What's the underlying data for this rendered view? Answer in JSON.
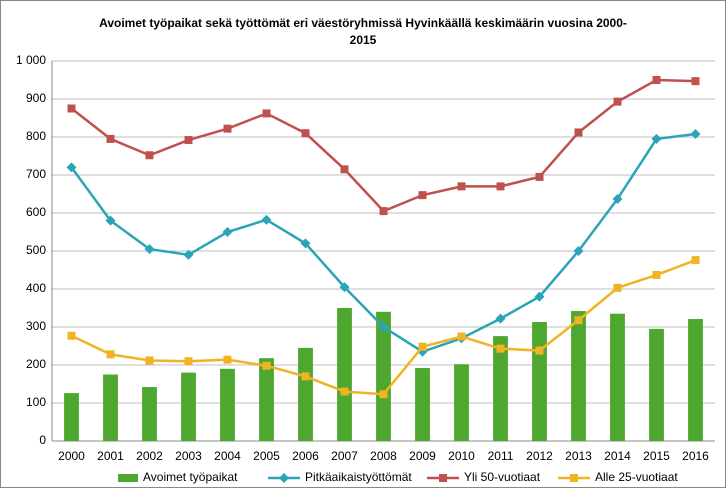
{
  "chart_data": {
    "type": "bar",
    "title": "Avoimet työpaikat sekä työttömät eri väestöryhmissä Hyvinkäällä keskimäärin vuosina 2000-2015",
    "categories": [
      "2000",
      "2001",
      "2002",
      "2003",
      "2004",
      "2005",
      "2006",
      "2007",
      "2008",
      "2009",
      "2010",
      "2011",
      "2012",
      "2013",
      "2014",
      "2015",
      "2016"
    ],
    "series": [
      {
        "name": "Avoimet työpaikat",
        "type": "bar",
        "color": "#4ea72e",
        "values": [
          126,
          175,
          142,
          180,
          190,
          218,
          245,
          350,
          340,
          192,
          202,
          276,
          313,
          342,
          335,
          295,
          321
        ]
      },
      {
        "name": "Pitkäaikaistyöttömät",
        "type": "line",
        "marker": "diamond",
        "color": "#2aa5b8",
        "values": [
          720,
          580,
          505,
          490,
          550,
          582,
          520,
          405,
          300,
          235,
          270,
          322,
          380,
          500,
          637,
          795,
          808
        ]
      },
      {
        "name": "Yli 50-vuotiaat",
        "type": "line",
        "marker": "square",
        "color": "#c0504d",
        "values": [
          875,
          795,
          752,
          792,
          822,
          862,
          810,
          715,
          605,
          647,
          670,
          670,
          695,
          812,
          893,
          950,
          947
        ]
      },
      {
        "name": "Alle 25-vuotiaat",
        "type": "line",
        "marker": "square",
        "color": "#f0b323",
        "values": [
          277,
          228,
          212,
          210,
          214,
          198,
          170,
          130,
          123,
          248,
          275,
          243,
          238,
          318,
          403,
          437,
          476
        ]
      }
    ],
    "ylim": [
      0,
      1000
    ],
    "yticks": [
      0,
      100,
      200,
      300,
      400,
      500,
      600,
      700,
      800,
      900,
      {
        "value": 1000,
        "label": "1 000"
      }
    ],
    "grid": true,
    "legend": "bottom"
  }
}
